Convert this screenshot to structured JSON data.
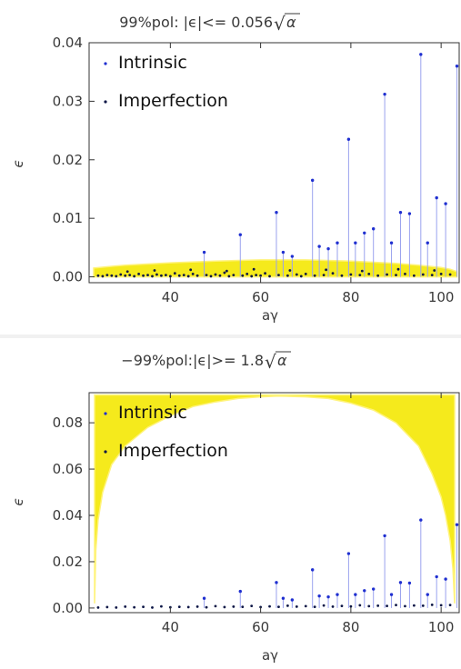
{
  "chart_data": [
    {
      "type": "scatter",
      "title": "99%pol: |ϵ|<= 0.056",
      "title_sqrt": "α",
      "xlabel": "aγ",
      "ylabel": "ϵ",
      "xlim": [
        22,
        104
      ],
      "ylim": [
        -0.001,
        0.04
      ],
      "xticks": [
        40,
        60,
        80,
        100
      ],
      "xtick_labels": [
        "40",
        "60",
        "80",
        "100"
      ],
      "yticks": [
        0.0,
        0.01,
        0.02,
        0.03,
        0.04
      ],
      "ytick_labels": [
        "0.00",
        "0.01",
        "0.02",
        "0.03",
        "0.04"
      ],
      "grid": false,
      "legend": "top-left",
      "band": {
        "type": "allowed-region",
        "x": [
          23,
          27,
          30,
          40,
          50,
          60,
          64,
          70,
          80,
          90,
          95,
          100,
          102,
          103.5
        ],
        "upper": [
          0.0015,
          0.0018,
          0.002,
          0.0024,
          0.0027,
          0.0029,
          0.0029,
          0.0029,
          0.0027,
          0.0023,
          0.002,
          0.0016,
          0.0013,
          0.0009
        ],
        "lower": [
          0.0,
          0.0,
          0.0,
          0.0,
          0.0,
          0.0,
          0.0,
          0.0,
          0.0,
          0.0,
          0.0,
          0.0,
          0.0,
          0.0
        ]
      },
      "series": [
        {
          "name": "Intrinsic",
          "color": "#1f2fd0",
          "style": "stem",
          "x": [
            47.5,
            55.5,
            63.5,
            71.5,
            79.5,
            87.5,
            95.5,
            103.5,
            65.0,
            67.0,
            73.0,
            75.0,
            77.0,
            81.0,
            83.0,
            85.0,
            89.0,
            91.0,
            93.0,
            97.0,
            99.0,
            101.0
          ],
          "y": [
            0.0042,
            0.0072,
            0.011,
            0.0165,
            0.0235,
            0.0312,
            0.038,
            0.036,
            0.0042,
            0.0035,
            0.0052,
            0.0048,
            0.0058,
            0.0058,
            0.0075,
            0.0082,
            0.0058,
            0.011,
            0.0108,
            0.0058,
            0.0135,
            0.0125
          ]
        },
        {
          "name": "Imperfection",
          "color": "#0c1646",
          "style": "points",
          "x": [
            24,
            25,
            26,
            27,
            28,
            29,
            30,
            31,
            32,
            33,
            34,
            35,
            36,
            37,
            38,
            39,
            40,
            41,
            42,
            43,
            44,
            45,
            46,
            48,
            49,
            50,
            51,
            52,
            53,
            54,
            56,
            57,
            58,
            59,
            60,
            61,
            62,
            64,
            66,
            68,
            69,
            70,
            72,
            74,
            76,
            78,
            80,
            82,
            84,
            86,
            88,
            90,
            92,
            94,
            96,
            98,
            100,
            102,
            30.5,
            36.5,
            44.5,
            52.5,
            58.5,
            66.5,
            74.5,
            82.5,
            90.5,
            98.5
          ],
          "y": [
            0.0002,
            0.0001,
            0.0003,
            0.0002,
            0.0001,
            0.0004,
            0.0002,
            0.0003,
            0.0001,
            0.0005,
            0.0002,
            0.0003,
            0.0001,
            0.0004,
            0.0002,
            0.0003,
            0.0001,
            0.0006,
            0.0002,
            0.0003,
            0.0001,
            0.0005,
            0.0002,
            0.0003,
            0.0001,
            0.0004,
            0.0002,
            0.0007,
            0.0001,
            0.0003,
            0.0002,
            0.0005,
            0.0001,
            0.0003,
            0.0002,
            0.0006,
            0.0001,
            0.0003,
            0.0002,
            0.0004,
            0.0001,
            0.0005,
            0.0002,
            0.0003,
            0.0006,
            0.0002,
            0.0004,
            0.0003,
            0.0005,
            0.0002,
            0.0004,
            0.0003,
            0.0005,
            0.0002,
            0.0004,
            0.0003,
            0.0005,
            0.0004,
            0.0009,
            0.0011,
            0.0012,
            0.001,
            0.0013,
            0.0011,
            0.0012,
            0.001,
            0.0013,
            0.0011
          ]
        }
      ]
    },
    {
      "type": "scatter",
      "title": "−99%pol:|ϵ|>= 1.8",
      "title_sqrt": "α",
      "xlabel": "aγ",
      "ylabel": "ϵ",
      "xlim": [
        22,
        104
      ],
      "ylim": [
        -0.002,
        0.093
      ],
      "xticks": [
        40,
        60,
        80,
        100
      ],
      "xtick_labels": [
        "40",
        "60",
        "80",
        "100"
      ],
      "yticks": [
        0.0,
        0.02,
        0.04,
        0.06,
        0.08
      ],
      "ytick_labels": [
        "0.00",
        "0.02",
        "0.04",
        "0.06",
        "0.08"
      ],
      "grid": false,
      "legend": "top-left",
      "band": {
        "type": "excluded-region",
        "x": [
          23.2,
          23.5,
          24,
          25,
          27,
          30,
          35,
          40,
          45,
          50,
          55,
          60,
          64,
          70,
          75,
          80,
          85,
          90,
          95,
          98,
          100,
          101,
          102,
          102.6,
          103.0
        ],
        "upper": [
          0.092,
          0.092,
          0.092,
          0.092,
          0.092,
          0.092,
          0.092,
          0.092,
          0.092,
          0.092,
          0.092,
          0.092,
          0.092,
          0.092,
          0.092,
          0.092,
          0.092,
          0.092,
          0.092,
          0.092,
          0.092,
          0.092,
          0.092,
          0.092,
          0.092
        ],
        "lower": [
          0.002,
          0.025,
          0.038,
          0.05,
          0.062,
          0.07,
          0.078,
          0.083,
          0.087,
          0.089,
          0.0905,
          0.0912,
          0.0915,
          0.0912,
          0.0905,
          0.0885,
          0.0855,
          0.08,
          0.07,
          0.058,
          0.048,
          0.04,
          0.029,
          0.017,
          0.002
        ]
      },
      "series": [
        {
          "name": "Intrinsic",
          "color": "#1f2fd0",
          "style": "stem",
          "x": [
            47.5,
            55.5,
            63.5,
            71.5,
            79.5,
            87.5,
            95.5,
            103.5,
            65.0,
            67.0,
            73.0,
            75.0,
            77.0,
            81.0,
            83.0,
            85.0,
            89.0,
            91.0,
            93.0,
            97.0,
            99.0,
            101.0
          ],
          "y": [
            0.0042,
            0.0072,
            0.011,
            0.0165,
            0.0235,
            0.0312,
            0.038,
            0.036,
            0.0042,
            0.0035,
            0.0052,
            0.0048,
            0.0058,
            0.0058,
            0.0075,
            0.0082,
            0.0058,
            0.011,
            0.0108,
            0.0058,
            0.0135,
            0.0125
          ]
        },
        {
          "name": "Imperfection",
          "color": "#0c1646",
          "style": "points",
          "x": [
            24,
            26,
            28,
            30,
            32,
            34,
            36,
            38,
            40,
            42,
            44,
            46,
            48,
            50,
            52,
            54,
            56,
            58,
            60,
            62,
            64,
            66,
            68,
            70,
            72,
            74,
            76,
            78,
            80,
            82,
            84,
            86,
            88,
            90,
            92,
            94,
            96,
            98,
            100,
            102
          ],
          "y": [
            0.0002,
            0.0004,
            0.0002,
            0.0006,
            0.0003,
            0.0005,
            0.0002,
            0.0007,
            0.0003,
            0.0005,
            0.0004,
            0.0006,
            0.0003,
            0.0008,
            0.0004,
            0.0006,
            0.0005,
            0.0009,
            0.0004,
            0.0007,
            0.0005,
            0.001,
            0.0006,
            0.0008,
            0.0005,
            0.0011,
            0.0006,
            0.0009,
            0.0007,
            0.0012,
            0.0008,
            0.001,
            0.0009,
            0.0013,
            0.0008,
            0.0011,
            0.001,
            0.0014,
            0.0012,
            0.0013
          ]
        }
      ]
    }
  ],
  "style": {
    "band_color": "#f5ea1c",
    "band_edge_color": "#fff37a",
    "stem_color": "#9aa2ee",
    "frame_color": "#333333",
    "tick_text_color": "#3a3a3a"
  }
}
